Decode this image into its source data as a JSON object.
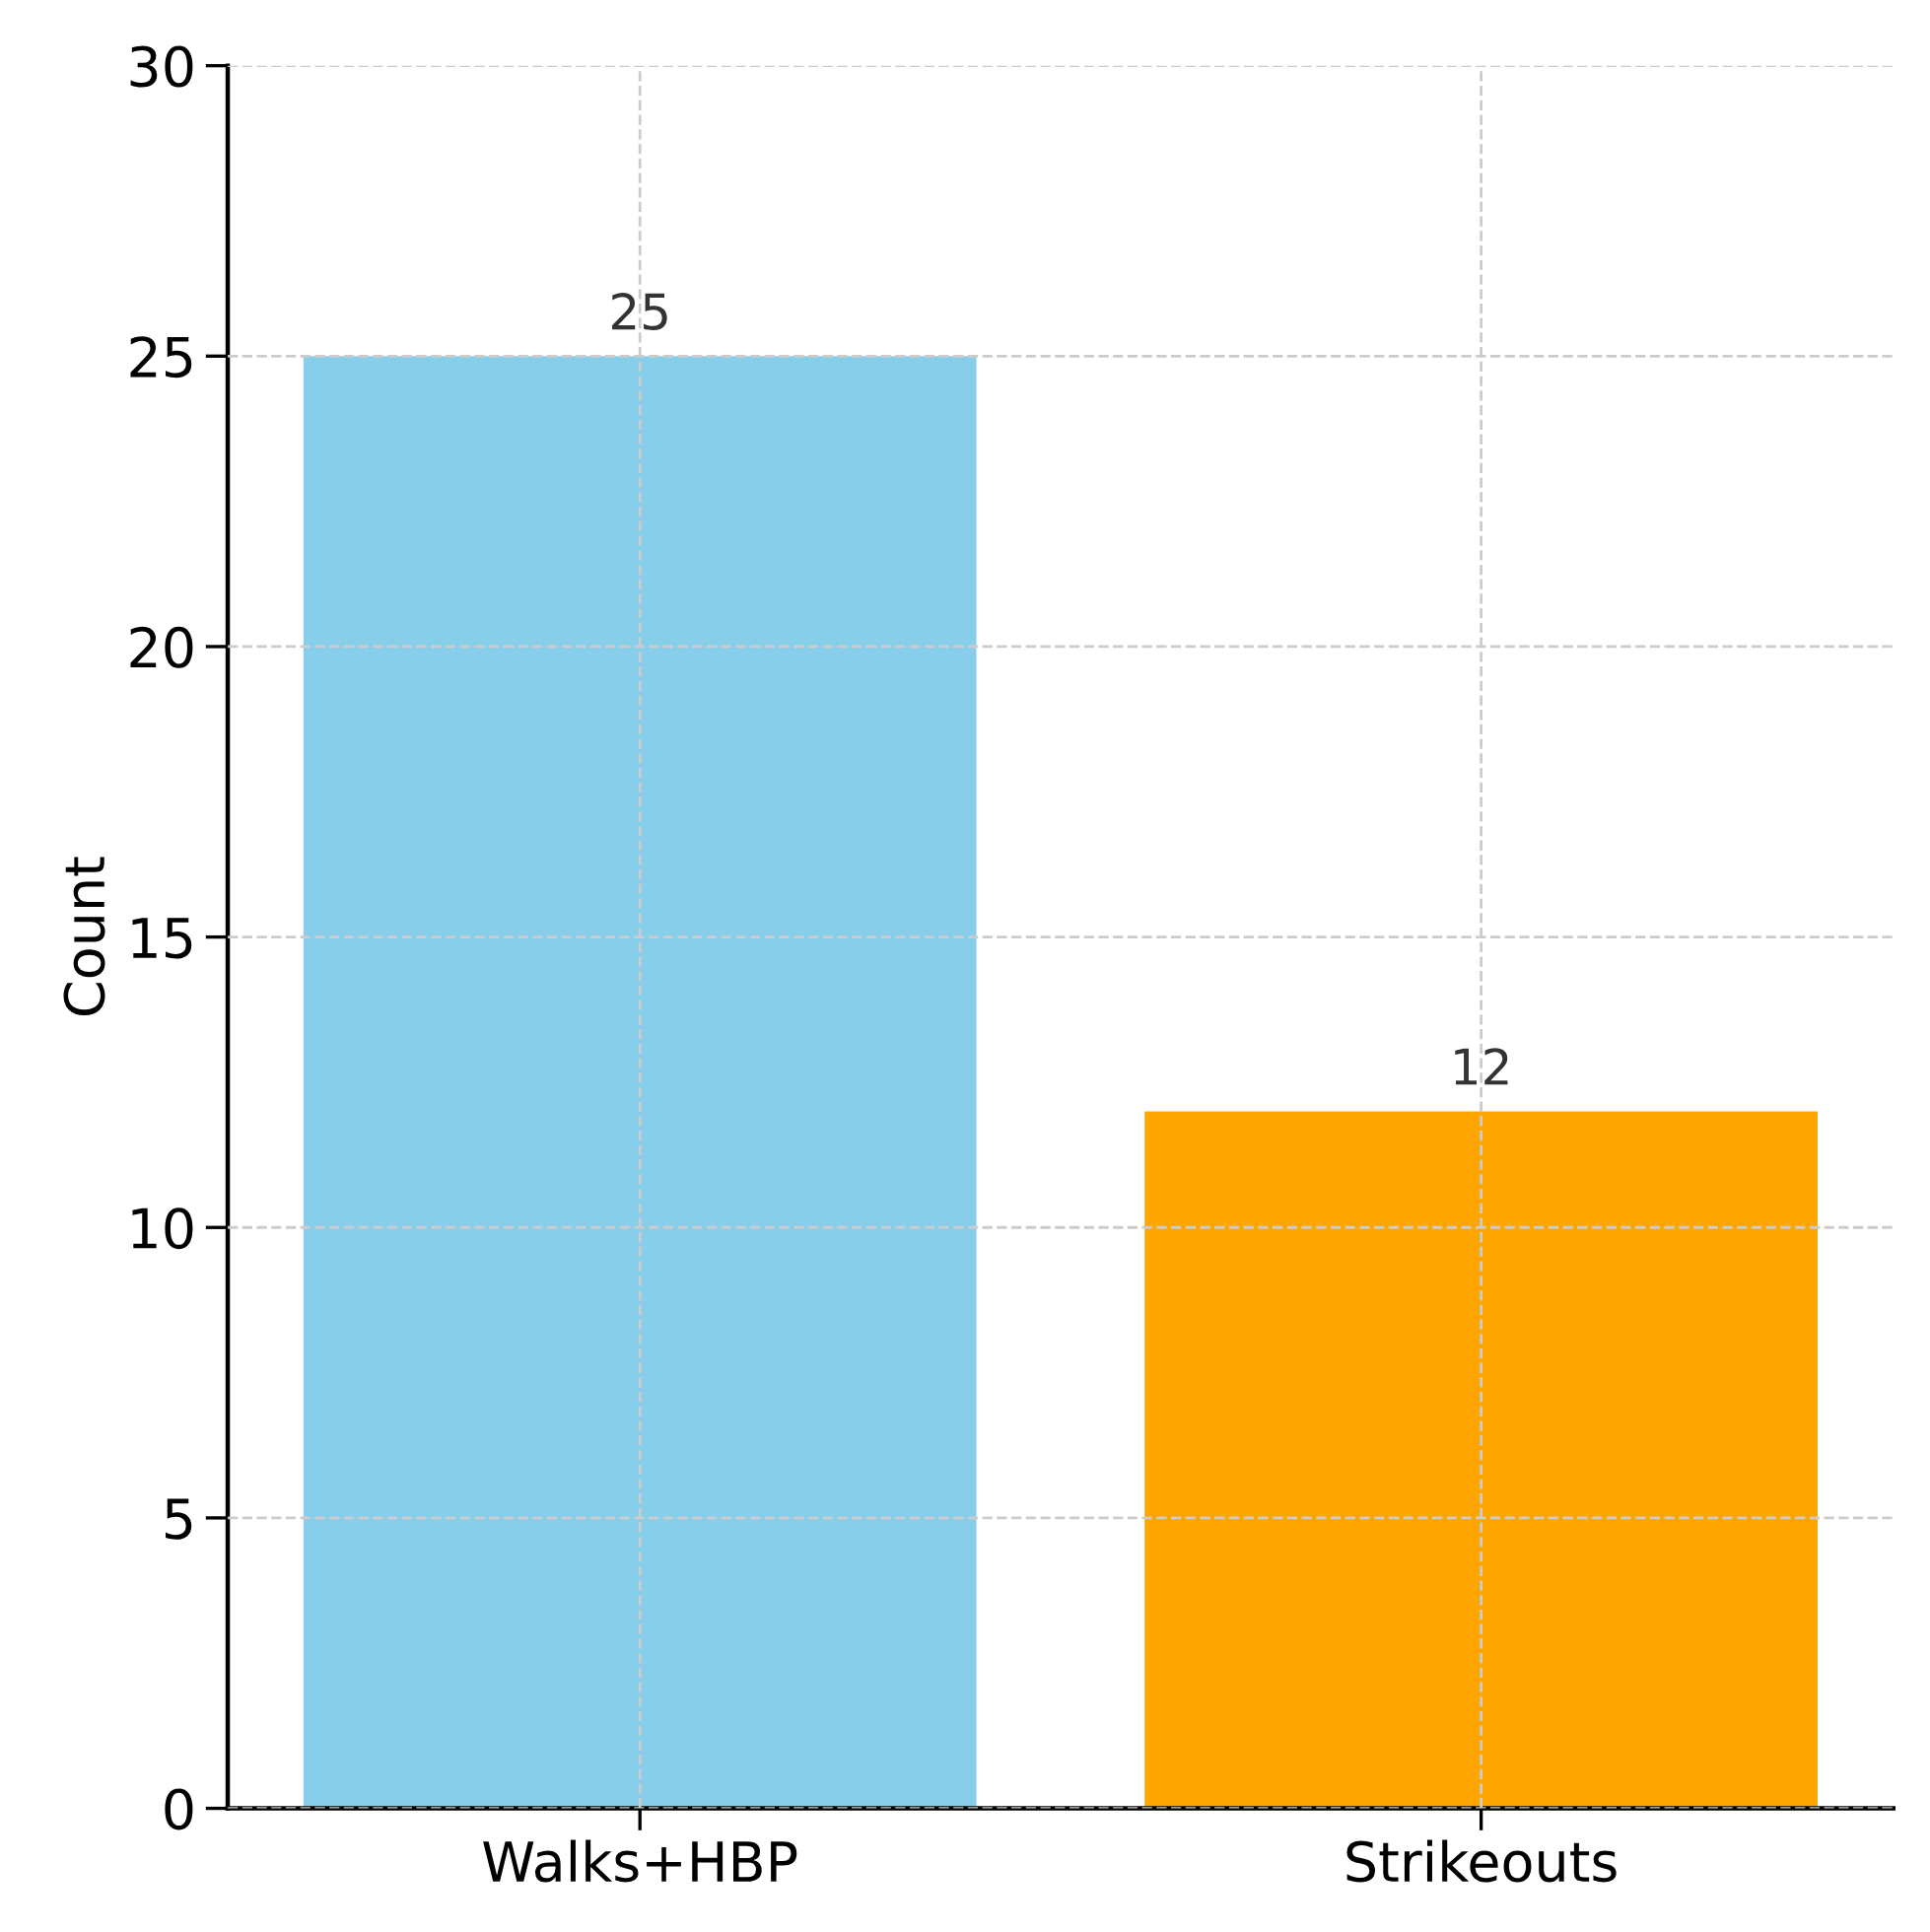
{
  "chart_data": {
    "type": "bar",
    "ylabel": "Count",
    "categories": [
      "Walks+HBP",
      "Strikeouts"
    ],
    "values": [
      25,
      12
    ],
    "colors": [
      "#87ceeb",
      "#ffa500"
    ],
    "ylim": [
      0,
      30
    ],
    "yticks": [
      0,
      5,
      10,
      15,
      20,
      25,
      30
    ],
    "grid": true,
    "data_labels": true
  }
}
